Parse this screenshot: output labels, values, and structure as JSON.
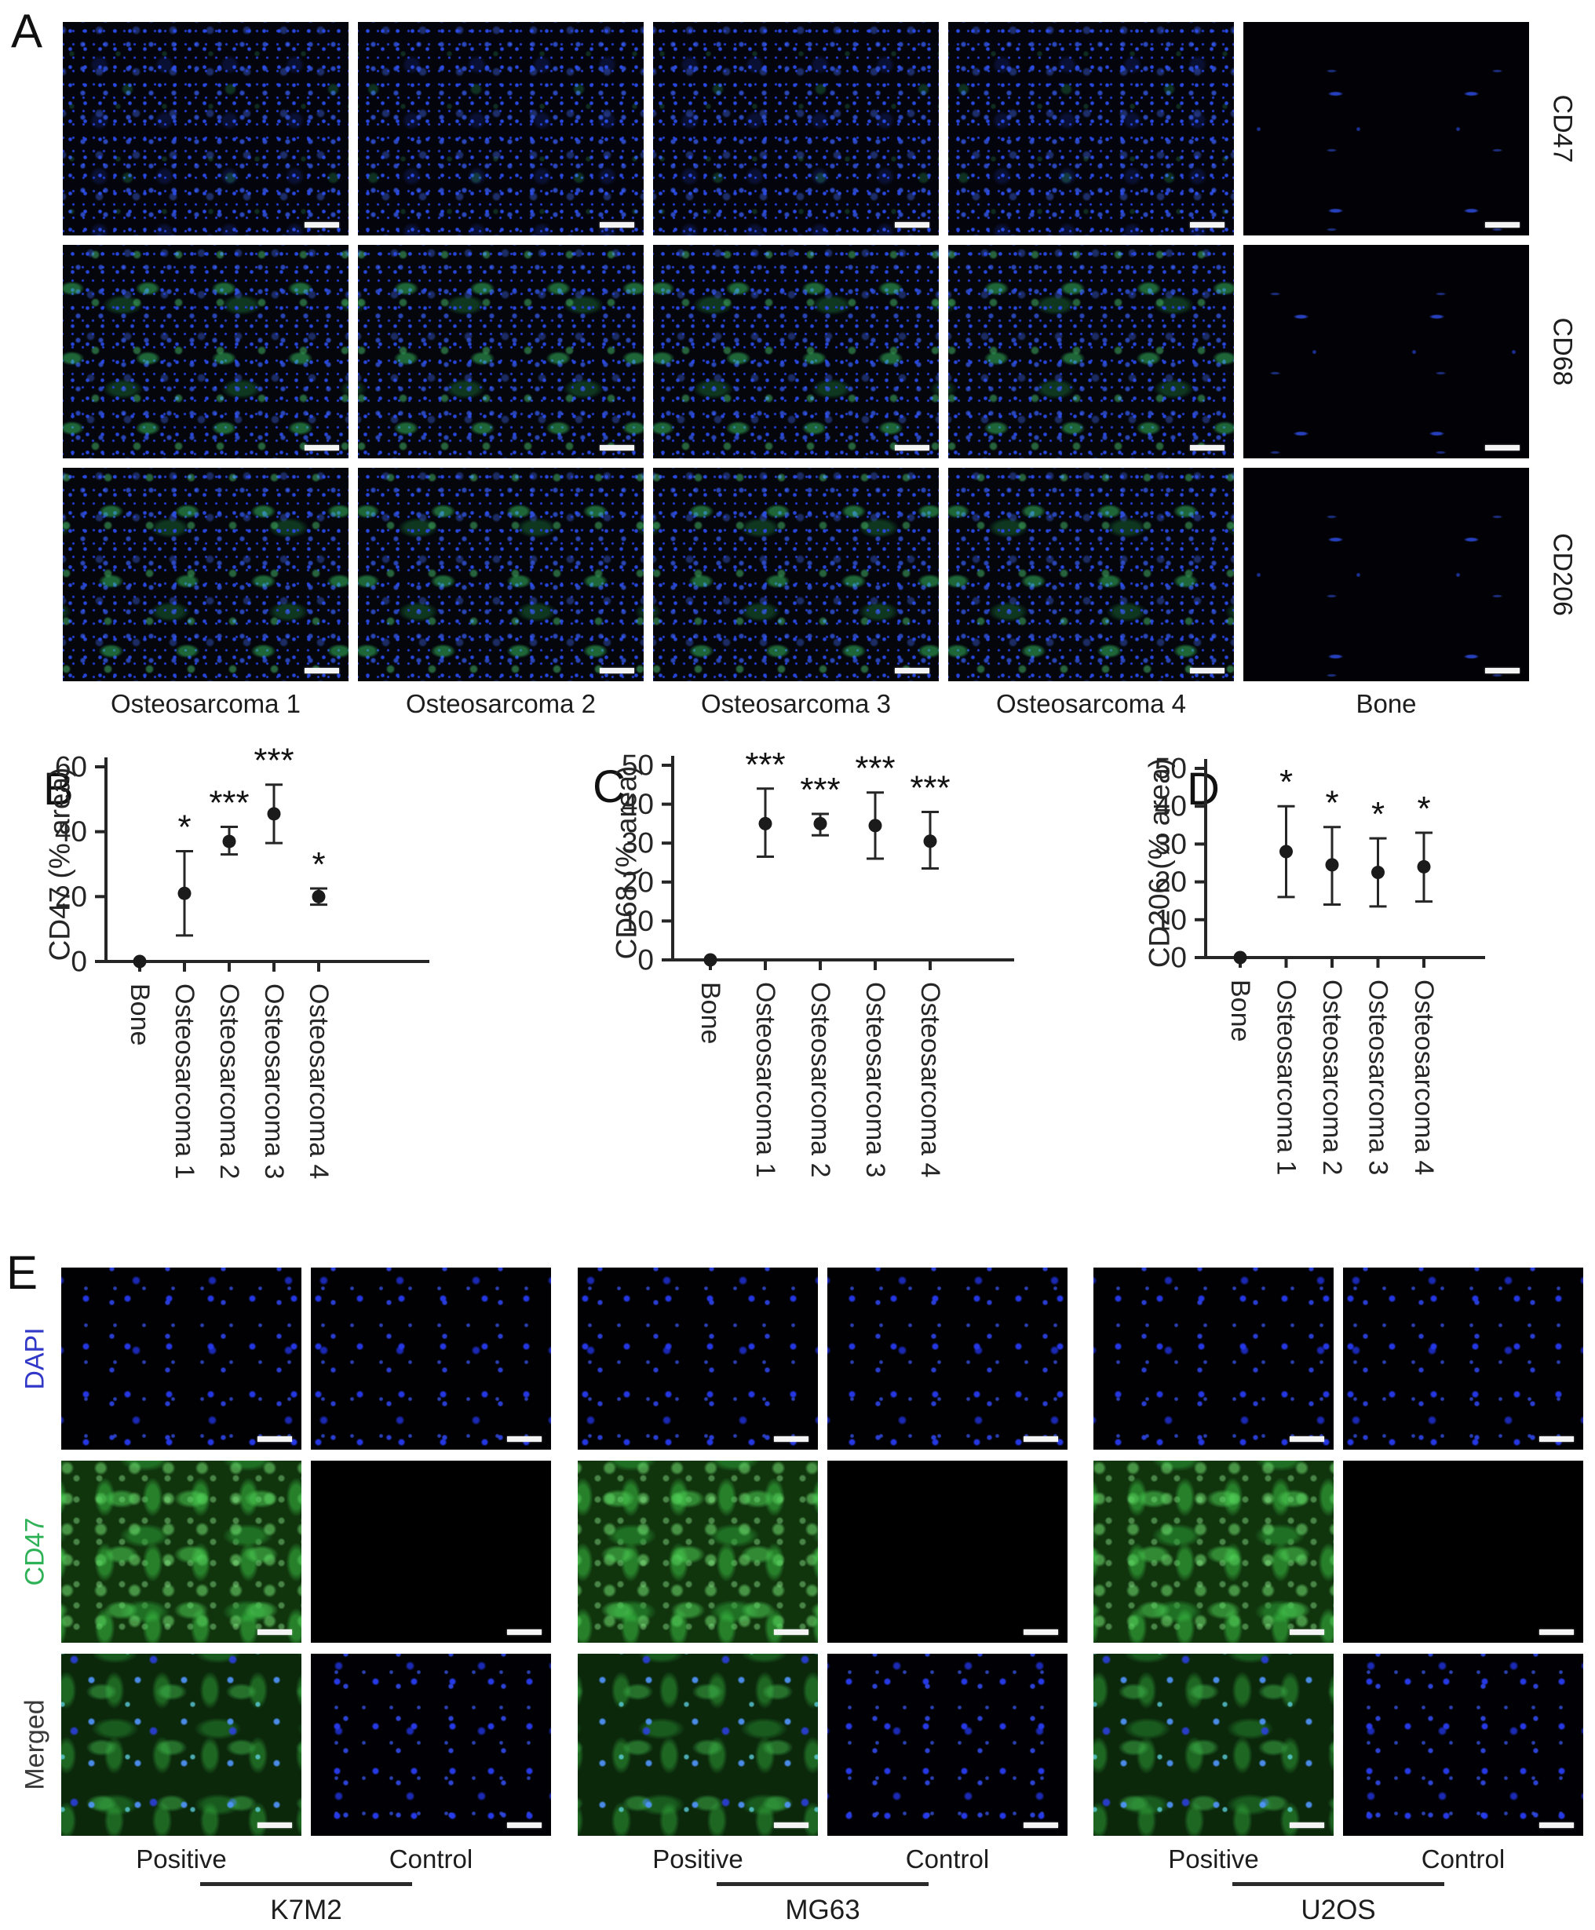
{
  "panel_a": {
    "label": "A",
    "row_labels": [
      "CD47",
      "CD68",
      "CD206"
    ],
    "column_labels": [
      "Osteosarcoma 1",
      "Osteosarcoma 2",
      "Osteosarcoma 3",
      "Osteosarcoma 4",
      "Bone"
    ]
  },
  "chart_data": [
    {
      "type": "scatter",
      "panel": "B",
      "ylabel": "CD47 (% area)",
      "ylim": [
        0,
        60
      ],
      "yticks": [
        0,
        20,
        40,
        60
      ],
      "categories": [
        "Bone",
        "Osteosarcoma 1",
        "Osteosarcoma 2",
        "Osteosarcoma 3",
        "Osteosarcoma 4"
      ],
      "points": [
        {
          "mean": 0,
          "lo": 0,
          "hi": 0,
          "sig": ""
        },
        {
          "mean": 21,
          "lo": 8,
          "hi": 34,
          "sig": "*"
        },
        {
          "mean": 37,
          "lo": 33,
          "hi": 41.5,
          "sig": "***"
        },
        {
          "mean": 45.5,
          "lo": 36.5,
          "hi": 54.5,
          "sig": "***"
        },
        {
          "mean": 20,
          "lo": 17.5,
          "hi": 22.5,
          "sig": "*"
        }
      ]
    },
    {
      "type": "scatter",
      "panel": "C",
      "ylabel": "CD68 (% area)",
      "ylim": [
        0,
        50
      ],
      "yticks": [
        0,
        10,
        20,
        30,
        40,
        50
      ],
      "categories": [
        "Bone",
        "Osteosarcoma 1",
        "Osteosarcoma 2",
        "Osteosarcoma 3",
        "Osteosarcoma 4"
      ],
      "points": [
        {
          "mean": 0,
          "lo": 0,
          "hi": 0,
          "sig": ""
        },
        {
          "mean": 35,
          "lo": 26.5,
          "hi": 44,
          "sig": "***"
        },
        {
          "mean": 35,
          "lo": 32,
          "hi": 37.5,
          "sig": "***"
        },
        {
          "mean": 34.5,
          "lo": 26,
          "hi": 43,
          "sig": "***"
        },
        {
          "mean": 30.5,
          "lo": 23.5,
          "hi": 38,
          "sig": "***"
        }
      ]
    },
    {
      "type": "scatter",
      "panel": "D",
      "ylabel": "CD206 (% area)",
      "ylim": [
        0,
        50
      ],
      "yticks": [
        0,
        10,
        20,
        30,
        40,
        50
      ],
      "categories": [
        "Bone",
        "Osteosarcoma 1",
        "Osteosarcoma 2",
        "Osteosarcoma 3",
        "Osteosarcoma 4"
      ],
      "points": [
        {
          "mean": 0,
          "lo": 0,
          "hi": 0,
          "sig": ""
        },
        {
          "mean": 28,
          "lo": 16,
          "hi": 40,
          "sig": "*"
        },
        {
          "mean": 24.5,
          "lo": 14,
          "hi": 34.5,
          "sig": "*"
        },
        {
          "mean": 22.5,
          "lo": 13.5,
          "hi": 31.5,
          "sig": "*"
        },
        {
          "mean": 24,
          "lo": 14.8,
          "hi": 33,
          "sig": "*"
        }
      ]
    }
  ],
  "panel_e": {
    "label": "E",
    "row_labels": [
      {
        "label": "DAPI",
        "color": "#3137c6"
      },
      {
        "label": "CD47",
        "color": "#2fb257"
      },
      {
        "label": "Merged",
        "color": "#3a3a3a"
      }
    ],
    "groups": [
      {
        "name": "K7M2",
        "positive_label": "Positive",
        "control_label": "Control"
      },
      {
        "name": "MG63",
        "positive_label": "Positive",
        "control_label": "Control"
      },
      {
        "name": "U2OS",
        "positive_label": "Positive",
        "control_label": "Control"
      }
    ]
  }
}
